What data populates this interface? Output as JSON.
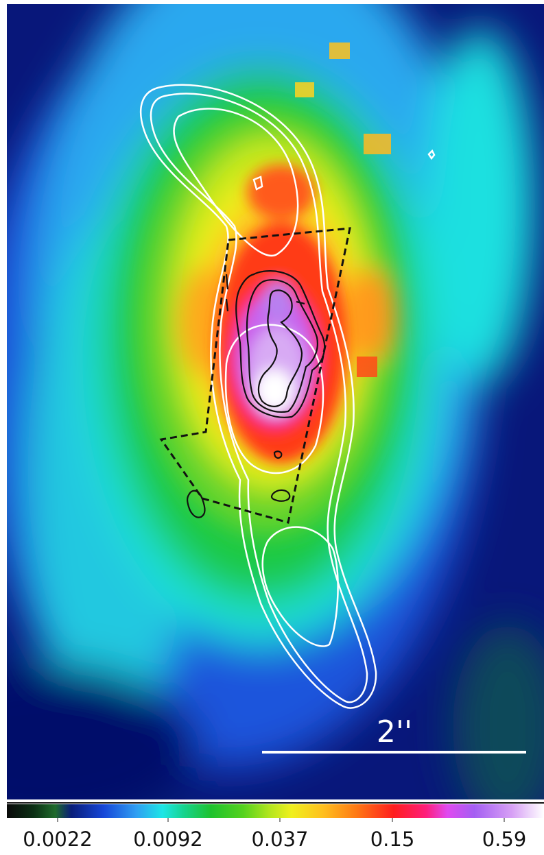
{
  "image": {
    "scale_bar_label": "2''",
    "colorbar": {
      "ticks": [
        "0.0022",
        "0.0092",
        "0.037",
        "0.15",
        "0.59"
      ],
      "scale": "log",
      "colormap": [
        "#0a0a0a",
        "#0b2f14",
        "#1f6b2b",
        "#0a1e7a",
        "#1646d8",
        "#2f9df2",
        "#1ee6e6",
        "#16d38d",
        "#1ec22e",
        "#55d21e",
        "#b4e61e",
        "#f0f01e",
        "#ffbe1e",
        "#ff7a14",
        "#ff1e1e",
        "#ff1e7a",
        "#e04af0",
        "#a45ef2",
        "#d7a0f5",
        "#ffffff"
      ]
    },
    "overlays": {
      "white_contours": "radio-contours",
      "black_contours": "inner-contours",
      "dashed_outline": "field-of-view"
    }
  }
}
